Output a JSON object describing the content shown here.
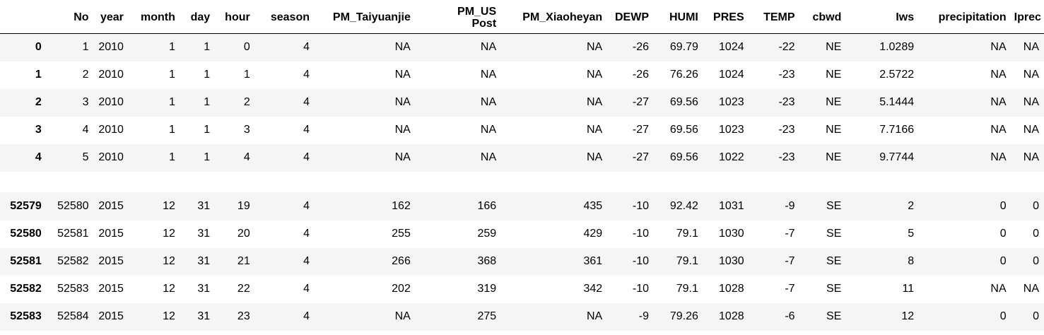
{
  "table": {
    "index_header": "",
    "columns": [
      "No",
      "year",
      "month",
      "day",
      "hour",
      "season",
      "PM_Taiyuanjie",
      "PM_US Post",
      "PM_Xiaoheyan",
      "DEWP",
      "HUMI",
      "PRES",
      "TEMP",
      "cbwd",
      "Iws",
      "precipitation",
      "Iprec"
    ],
    "rows": [
      {
        "index": "0",
        "values": [
          "1",
          "2010",
          "1",
          "1",
          "0",
          "4",
          "NA",
          "NA",
          "NA",
          "-26",
          "69.79",
          "1024",
          "-22",
          "NE",
          "1.0289",
          "NA",
          "NA"
        ]
      },
      {
        "index": "1",
        "values": [
          "2",
          "2010",
          "1",
          "1",
          "1",
          "4",
          "NA",
          "NA",
          "NA",
          "-26",
          "76.26",
          "1024",
          "-23",
          "NE",
          "2.5722",
          "NA",
          "NA"
        ]
      },
      {
        "index": "2",
        "values": [
          "3",
          "2010",
          "1",
          "1",
          "2",
          "4",
          "NA",
          "NA",
          "NA",
          "-27",
          "69.56",
          "1023",
          "-23",
          "NE",
          "5.1444",
          "NA",
          "NA"
        ]
      },
      {
        "index": "3",
        "values": [
          "4",
          "2010",
          "1",
          "1",
          "3",
          "4",
          "NA",
          "NA",
          "NA",
          "-27",
          "69.56",
          "1023",
          "-23",
          "NE",
          "7.7166",
          "NA",
          "NA"
        ]
      },
      {
        "index": "4",
        "values": [
          "5",
          "2010",
          "1",
          "1",
          "4",
          "4",
          "NA",
          "NA",
          "NA",
          "-27",
          "69.56",
          "1022",
          "-23",
          "NE",
          "9.7744",
          "NA",
          "NA"
        ]
      },
      {
        "index": "52579",
        "values": [
          "52580",
          "2015",
          "12",
          "31",
          "19",
          "4",
          "162",
          "166",
          "435",
          "-10",
          "92.42",
          "1031",
          "-9",
          "SE",
          "2",
          "0",
          "0"
        ]
      },
      {
        "index": "52580",
        "values": [
          "52581",
          "2015",
          "12",
          "31",
          "20",
          "4",
          "255",
          "259",
          "429",
          "-10",
          "79.1",
          "1030",
          "-7",
          "SE",
          "5",
          "0",
          "0"
        ]
      },
      {
        "index": "52581",
        "values": [
          "52582",
          "2015",
          "12",
          "31",
          "21",
          "4",
          "266",
          "368",
          "361",
          "-10",
          "79.1",
          "1030",
          "-7",
          "SE",
          "8",
          "0",
          "0"
        ]
      },
      {
        "index": "52582",
        "values": [
          "52583",
          "2015",
          "12",
          "31",
          "22",
          "4",
          "202",
          "319",
          "342",
          "-10",
          "79.1",
          "1028",
          "-7",
          "SE",
          "11",
          "NA",
          "NA"
        ]
      },
      {
        "index": "52583",
        "values": [
          "52584",
          "2015",
          "12",
          "31",
          "23",
          "4",
          "NA",
          "275",
          "NA",
          "-9",
          "79.26",
          "1028",
          "-6",
          "SE",
          "12",
          "0",
          "0"
        ]
      }
    ]
  }
}
